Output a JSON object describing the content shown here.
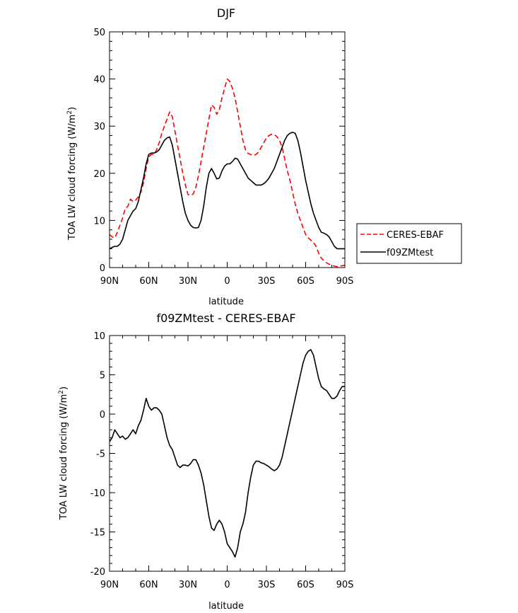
{
  "chart_data": [
    {
      "type": "line",
      "title": "DJF",
      "xlabel": "latitude",
      "ylabel": "TOA LW cloud forcing (W/m²)",
      "ylabel_parts": {
        "main": "TOA LW cloud forcing (W/m",
        "sup": "2",
        "end": ")"
      },
      "xlim": [
        90,
        -90
      ],
      "ylim": [
        0,
        50
      ],
      "xticks": [
        90,
        60,
        30,
        0,
        -30,
        -60,
        -90
      ],
      "xtick_labels": [
        "90N",
        "60N",
        "30N",
        "0",
        "30S",
        "60S",
        "90S"
      ],
      "yticks": [
        0,
        10,
        20,
        30,
        40,
        50
      ],
      "ytick_labels": [
        "0",
        "10",
        "20",
        "30",
        "40",
        "50"
      ],
      "legend_position": "right",
      "series": [
        {
          "name": "CERES-EBAF",
          "color": "#ff0000",
          "style": "dashed",
          "x": [
            90,
            88,
            86,
            84,
            82,
            80,
            78,
            76,
            74,
            72,
            70,
            68,
            66,
            64,
            62,
            60,
            58,
            56,
            54,
            52,
            50,
            48,
            46,
            44,
            42,
            40,
            38,
            36,
            34,
            32,
            30,
            28,
            26,
            24,
            22,
            20,
            18,
            16,
            14,
            12,
            10,
            8,
            6,
            4,
            2,
            0,
            -2,
            -4,
            -6,
            -8,
            -10,
            -12,
            -14,
            -16,
            -18,
            -20,
            -22,
            -24,
            -26,
            -28,
            -30,
            -32,
            -34,
            -36,
            -38,
            -40,
            -42,
            -44,
            -46,
            -48,
            -50,
            -52,
            -54,
            -56,
            -58,
            -60,
            -62,
            -64,
            -66,
            -68,
            -70,
            -72,
            -74,
            -76,
            -78,
            -80,
            -82,
            -84,
            -86,
            -88,
            -90
          ],
          "y": [
            7.0,
            6.5,
            6.3,
            7.5,
            9.0,
            10.5,
            12.5,
            13.0,
            14.5,
            14.0,
            14.3,
            15.0,
            16.0,
            18.0,
            21.0,
            23.5,
            24.0,
            24.0,
            25.0,
            26.5,
            28.5,
            30.0,
            31.5,
            33.0,
            32.0,
            29.0,
            26.0,
            23.0,
            20.0,
            17.5,
            15.5,
            15.3,
            15.6,
            17.0,
            19.5,
            22.5,
            25.5,
            28.5,
            31.5,
            34.5,
            34.0,
            32.5,
            33.5,
            36.0,
            38.0,
            40.0,
            39.5,
            38.0,
            36.0,
            33.0,
            30.0,
            27.0,
            25.0,
            24.2,
            24.0,
            23.8,
            24.0,
            24.5,
            25.5,
            26.5,
            27.5,
            28.0,
            28.3,
            28.2,
            27.8,
            27.0,
            25.5,
            23.0,
            20.5,
            18.5,
            16.0,
            13.5,
            11.5,
            10.0,
            8.5,
            7.0,
            6.3,
            5.8,
            5.3,
            4.5,
            3.0,
            2.0,
            1.5,
            1.0,
            0.7,
            0.5,
            0.3,
            0.2,
            0.3,
            0.4,
            0.5
          ]
        },
        {
          "name": "f09ZMtest",
          "color": "#000000",
          "style": "solid",
          "x": [
            90,
            88,
            86,
            84,
            82,
            80,
            78,
            76,
            74,
            72,
            70,
            68,
            66,
            64,
            62,
            60,
            58,
            56,
            54,
            52,
            50,
            48,
            46,
            44,
            42,
            40,
            38,
            36,
            34,
            32,
            30,
            28,
            26,
            24,
            22,
            20,
            18,
            16,
            14,
            12,
            10,
            8,
            6,
            4,
            2,
            0,
            -2,
            -4,
            -6,
            -8,
            -10,
            -12,
            -14,
            -16,
            -18,
            -20,
            -22,
            -24,
            -26,
            -28,
            -30,
            -32,
            -34,
            -36,
            -38,
            -40,
            -42,
            -44,
            -46,
            -48,
            -50,
            -52,
            -54,
            -56,
            -58,
            -60,
            -62,
            -64,
            -66,
            -68,
            -70,
            -72,
            -74,
            -76,
            -78,
            -80,
            -82,
            -84,
            -86,
            -88,
            -90
          ],
          "y": [
            4.0,
            4.3,
            4.5,
            4.5,
            5.0,
            6.0,
            8.0,
            10.0,
            11.0,
            12.0,
            12.5,
            14.0,
            16.5,
            19.0,
            22.0,
            24.0,
            24.3,
            24.3,
            24.5,
            25.0,
            26.0,
            27.0,
            27.5,
            27.7,
            26.0,
            23.0,
            20.0,
            17.0,
            14.0,
            11.5,
            10.0,
            9.0,
            8.5,
            8.4,
            8.5,
            10.0,
            13.0,
            17.0,
            20.0,
            21.0,
            20.0,
            18.8,
            19.0,
            20.5,
            21.5,
            22.0,
            22.0,
            22.5,
            23.2,
            23.0,
            22.0,
            21.0,
            20.0,
            19.0,
            18.5,
            18.0,
            17.5,
            17.5,
            17.5,
            17.8,
            18.3,
            19.0,
            20.0,
            21.0,
            22.5,
            24.0,
            25.5,
            27.0,
            28.0,
            28.5,
            28.7,
            28.5,
            27.0,
            24.5,
            21.5,
            18.5,
            16.0,
            13.5,
            11.5,
            10.0,
            8.5,
            7.5,
            7.3,
            7.0,
            6.5,
            5.5,
            4.5,
            4.0,
            4.0,
            4.0,
            4.0
          ]
        }
      ]
    },
    {
      "type": "line",
      "title": "f09ZMtest - CERES-EBAF",
      "xlabel": "latitude",
      "ylabel": "TOA LW cloud forcing (W/m²)",
      "ylabel_parts": {
        "main": "TOA LW cloud forcing (W/m",
        "sup": "2",
        "end": ")"
      },
      "xlim": [
        90,
        -90
      ],
      "ylim": [
        -20,
        10
      ],
      "xticks": [
        90,
        60,
        30,
        0,
        -30,
        -60,
        -90
      ],
      "xtick_labels": [
        "90N",
        "60N",
        "30N",
        "0",
        "30S",
        "60S",
        "90S"
      ],
      "yticks": [
        -20,
        -15,
        -10,
        -5,
        0,
        5,
        10
      ],
      "ytick_labels": [
        "-20",
        "-15",
        "-10",
        "-5",
        "0",
        "5",
        "10"
      ],
      "series": [
        {
          "name": "f09ZMtest - CERES-EBAF",
          "color": "#000000",
          "style": "solid",
          "x": [
            90,
            88,
            86,
            84,
            82,
            80,
            78,
            76,
            74,
            72,
            70,
            68,
            66,
            64,
            62,
            60,
            58,
            56,
            54,
            52,
            50,
            48,
            46,
            44,
            42,
            40,
            38,
            36,
            34,
            32,
            30,
            28,
            26,
            24,
            22,
            20,
            18,
            16,
            14,
            12,
            10,
            8,
            6,
            4,
            2,
            0,
            -2,
            -4,
            -6,
            -8,
            -10,
            -12,
            -14,
            -16,
            -18,
            -20,
            -22,
            -24,
            -26,
            -28,
            -30,
            -32,
            -34,
            -36,
            -38,
            -40,
            -42,
            -44,
            -46,
            -48,
            -50,
            -52,
            -54,
            -56,
            -58,
            -60,
            -62,
            -64,
            -66,
            -68,
            -70,
            -72,
            -74,
            -76,
            -78,
            -80,
            -82,
            -84,
            -86,
            -88,
            -90
          ],
          "y": [
            -3.5,
            -3.0,
            -2.0,
            -2.5,
            -3.0,
            -2.8,
            -3.2,
            -3.0,
            -2.5,
            -2.0,
            -2.5,
            -1.5,
            -0.8,
            0.5,
            2.0,
            1.0,
            0.5,
            0.8,
            0.8,
            0.5,
            0.0,
            -1.5,
            -3.0,
            -4.0,
            -4.5,
            -5.5,
            -6.5,
            -6.8,
            -6.5,
            -6.5,
            -6.6,
            -6.3,
            -5.8,
            -5.8,
            -6.5,
            -7.5,
            -9.0,
            -11.0,
            -13.0,
            -14.5,
            -14.8,
            -14.0,
            -13.5,
            -14.0,
            -15.0,
            -16.5,
            -17.0,
            -17.5,
            -18.2,
            -17.0,
            -15.0,
            -14.0,
            -12.5,
            -10.0,
            -8.0,
            -6.5,
            -6.0,
            -6.0,
            -6.2,
            -6.3,
            -6.5,
            -6.7,
            -7.0,
            -7.2,
            -7.0,
            -6.5,
            -5.5,
            -4.0,
            -2.5,
            -1.0,
            0.5,
            2.0,
            3.5,
            5.0,
            6.5,
            7.5,
            8.0,
            8.2,
            7.5,
            6.0,
            4.5,
            3.5,
            3.2,
            3.0,
            2.5,
            2.0,
            2.0,
            2.3,
            3.0,
            3.5,
            3.5
          ]
        }
      ]
    }
  ]
}
